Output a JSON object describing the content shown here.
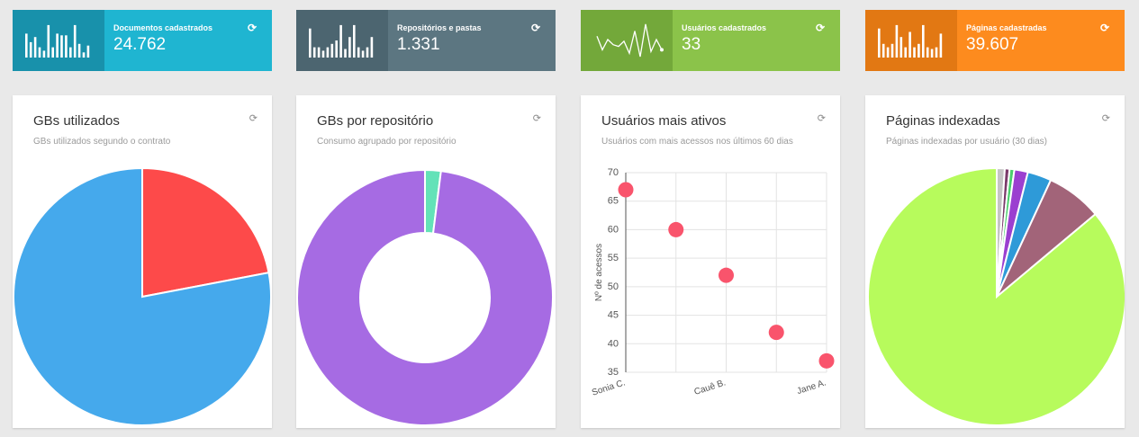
{
  "stats": [
    {
      "label": "Documentos cadastrados",
      "value": "24.762",
      "bg": "#1fb5d1",
      "dark": "#1891ab",
      "spark": "bars",
      "bars": [
        0.7,
        0.45,
        0.6,
        0.3,
        0.2,
        0.95,
        0.3,
        0.7,
        0.65,
        0.65,
        0.3,
        0.95,
        0.4,
        0.15,
        0.35
      ]
    },
    {
      "label": "Repositórios e pastas",
      "value": "1.331",
      "bg": "#5c7681",
      "dark": "#4c6570",
      "spark": "bars",
      "bars": [
        0.85,
        0.3,
        0.3,
        0.2,
        0.3,
        0.4,
        0.5,
        0.95,
        0.25,
        0.6,
        0.95,
        0.3,
        0.2,
        0.3,
        0.6
      ]
    },
    {
      "label": "Usuários cadastrados",
      "value": "33",
      "bg": "#8bc34a",
      "dark": "#73a83a",
      "spark": "line",
      "line": [
        0.6,
        0.2,
        0.5,
        0.35,
        0.3,
        0.45,
        0.1,
        0.75,
        0.0,
        0.95,
        0.15,
        0.5,
        0.2
      ]
    },
    {
      "label": "Páginas cadastradas",
      "value": "39.607",
      "bg": "#fd8b1e",
      "dark": "#e27813",
      "spark": "bars",
      "bars": [
        0.85,
        0.4,
        0.3,
        0.4,
        0.95,
        0.6,
        0.3,
        0.75,
        0.3,
        0.4,
        0.95,
        0.3,
        0.25,
        0.3,
        0.7
      ]
    }
  ],
  "refresh_glyph": "⟳",
  "cards": [
    {
      "title": "GBs utilizados",
      "subtitle": "GBs utilizados segundo o contrato"
    },
    {
      "title": "GBs por repositório",
      "subtitle": "Consumo agrupado por repositório"
    },
    {
      "title": "Usuários mais ativos",
      "subtitle": "Usuários com mais acessos nos últimos 60 dias"
    },
    {
      "title": "Páginas indexadas",
      "subtitle": "Páginas indexadas por usuário (30 dias)"
    }
  ],
  "chart_data": [
    {
      "type": "pie",
      "slices": [
        {
          "value": 22,
          "color": "#fd4a4a"
        },
        {
          "value": 78,
          "color": "#45a9ec"
        }
      ]
    },
    {
      "type": "pie",
      "donut": true,
      "slices": [
        {
          "value": 2,
          "color": "#63e2b8"
        },
        {
          "value": 98,
          "color": "#a66be3"
        }
      ]
    },
    {
      "type": "scatter",
      "ylabel": "Nº de acessos",
      "ylim": [
        35,
        70
      ],
      "yticks": [
        35,
        40,
        45,
        50,
        55,
        60,
        65,
        70
      ],
      "categories": [
        "Sonia C.",
        "",
        "Cauê B.",
        "",
        "Jane A."
      ],
      "xticklabels": [
        "Sonia C.",
        "Cauê B.",
        "Jane A."
      ],
      "values": [
        67,
        60,
        52,
        42,
        37
      ],
      "color": "#f9546c"
    },
    {
      "type": "pie",
      "slices": [
        {
          "value": 1.0,
          "color": "#c5c5c5"
        },
        {
          "value": 0.6,
          "color": "#7a3a6a"
        },
        {
          "value": 0.6,
          "color": "#4bcf6d"
        },
        {
          "value": 1.7,
          "color": "#9b3fd0"
        },
        {
          "value": 3.0,
          "color": "#2e9ad8"
        },
        {
          "value": 7.0,
          "color": "#a26479"
        },
        {
          "value": 86.1,
          "color": "#b7fb5c"
        }
      ]
    }
  ]
}
